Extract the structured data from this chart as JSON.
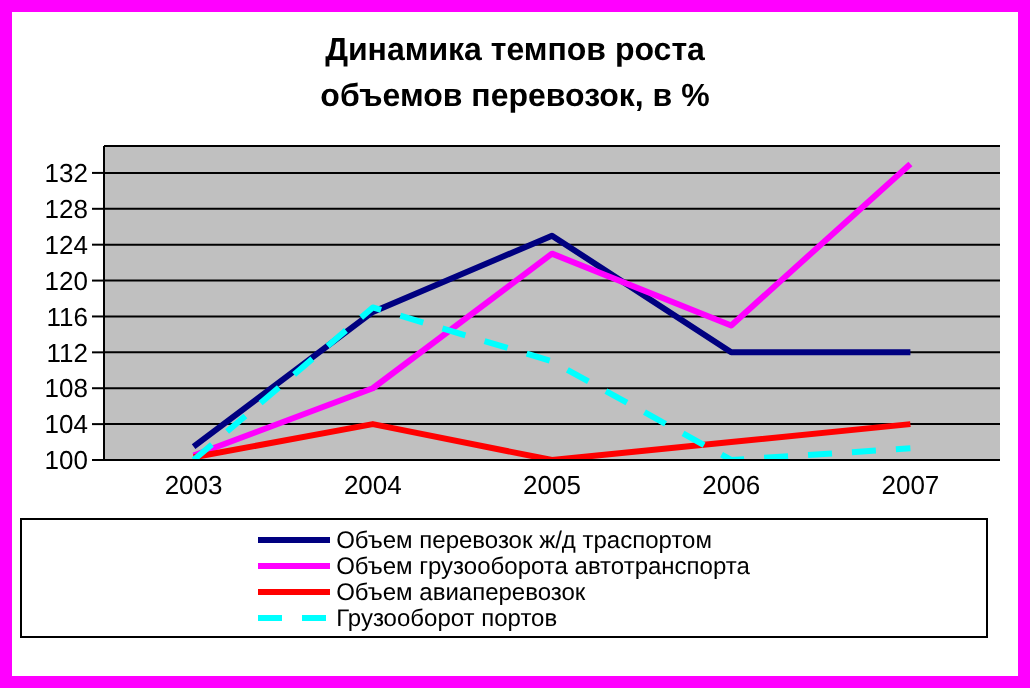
{
  "chart_data": {
    "type": "line",
    "title": "Динамика темпов роста\nобъемов перевозок, в %",
    "categories": [
      "2003",
      "2004",
      "2005",
      "2006",
      "2007"
    ],
    "series": [
      {
        "name": "Объем перевозок ж/д траспортом",
        "color": "#000080",
        "values": [
          101.5,
          116.5,
          125,
          112,
          112
        ],
        "line_style": "solid"
      },
      {
        "name": "Объем грузооборота автотранспорта",
        "color": "#ff00ff",
        "values": [
          100.5,
          108,
          123,
          115,
          133
        ],
        "line_style": "solid"
      },
      {
        "name": "Объем авиаперевозок",
        "color": "#ff0000",
        "values": [
          100.3,
          104,
          100,
          102,
          104
        ],
        "line_style": "solid"
      },
      {
        "name": "Грузооборот портов",
        "color": "#00ffff",
        "values": [
          100,
          117,
          111,
          100,
          101.3
        ],
        "line_style": "dashed"
      }
    ],
    "ylim": [
      100,
      135
    ],
    "yticks": [
      100,
      104,
      108,
      112,
      116,
      120,
      124,
      128,
      132
    ],
    "grid": "y",
    "legend": "bottom",
    "marker": "none"
  }
}
